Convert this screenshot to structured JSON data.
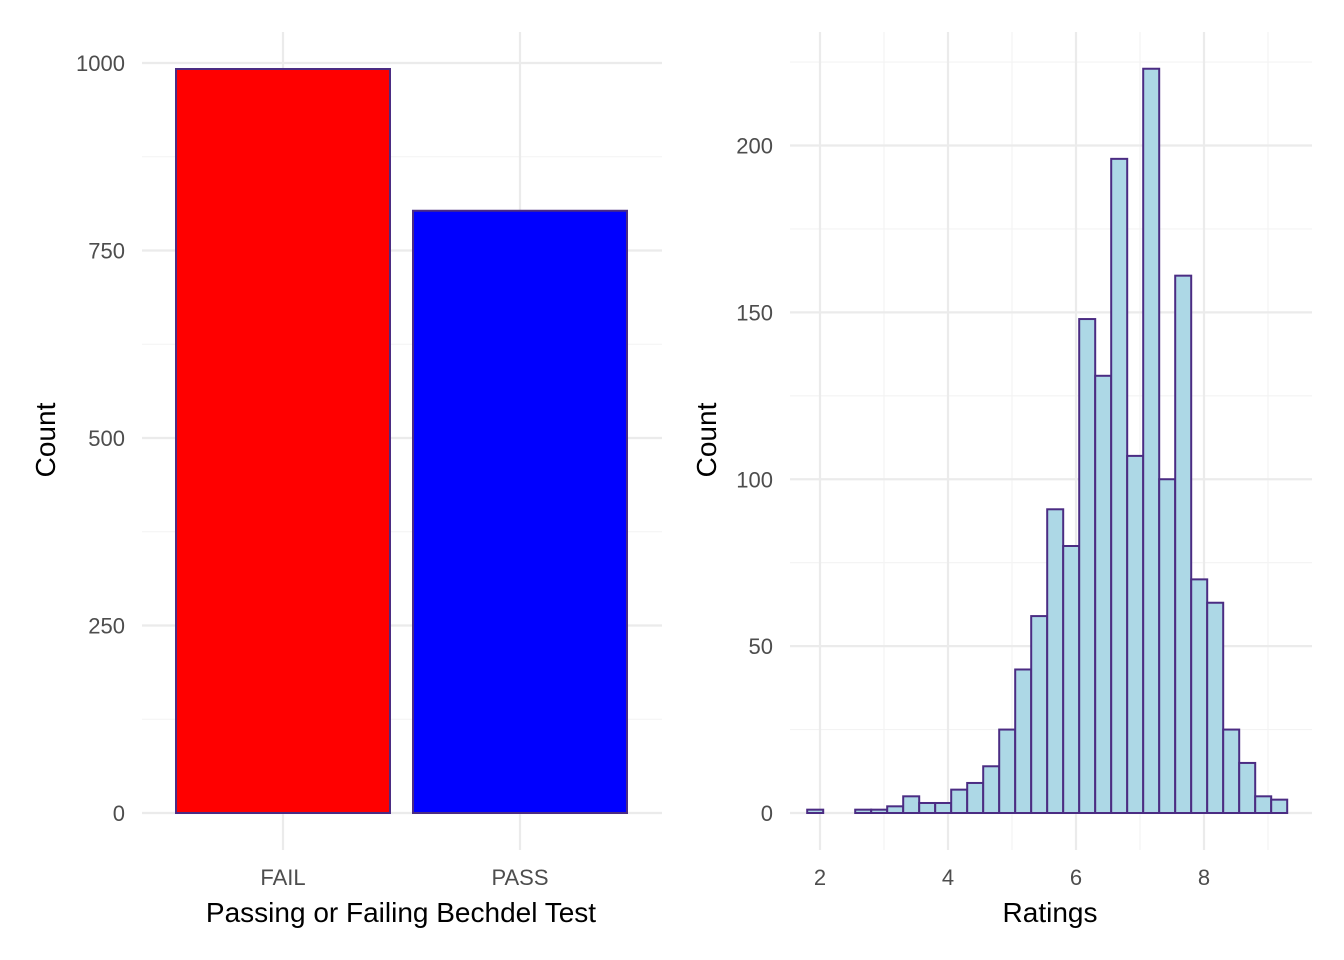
{
  "chart_data": [
    {
      "type": "bar",
      "categories": [
        "FAIL",
        "PASS"
      ],
      "values": [
        992,
        803
      ],
      "bar_colors": [
        "#ff0000",
        "#0000ff"
      ],
      "outline_color": "#4b2c83",
      "xlabel": "Passing or Failing Bechdel Test",
      "ylabel": "Count",
      "ylim": [
        0,
        1000
      ],
      "yticks": [
        0,
        250,
        500,
        750,
        1000
      ],
      "grid": true
    },
    {
      "type": "bar",
      "histogram": true,
      "bins": [
        {
          "x0": 1.8,
          "x1": 2.05,
          "count": 1
        },
        {
          "x0": 2.05,
          "x1": 2.3,
          "count": 0
        },
        {
          "x0": 2.3,
          "x1": 2.55,
          "count": 0
        },
        {
          "x0": 2.55,
          "x1": 2.8,
          "count": 1
        },
        {
          "x0": 2.8,
          "x1": 3.05,
          "count": 1
        },
        {
          "x0": 3.05,
          "x1": 3.3,
          "count": 2
        },
        {
          "x0": 3.3,
          "x1": 3.55,
          "count": 5
        },
        {
          "x0": 3.55,
          "x1": 3.8,
          "count": 3
        },
        {
          "x0": 3.8,
          "x1": 4.05,
          "count": 3
        },
        {
          "x0": 4.05,
          "x1": 4.3,
          "count": 7
        },
        {
          "x0": 4.3,
          "x1": 4.55,
          "count": 9
        },
        {
          "x0": 4.55,
          "x1": 4.8,
          "count": 14
        },
        {
          "x0": 4.8,
          "x1": 5.05,
          "count": 25
        },
        {
          "x0": 5.05,
          "x1": 5.3,
          "count": 43
        },
        {
          "x0": 5.3,
          "x1": 5.55,
          "count": 59
        },
        {
          "x0": 5.55,
          "x1": 5.8,
          "count": 91
        },
        {
          "x0": 5.8,
          "x1": 6.05,
          "count": 80
        },
        {
          "x0": 6.05,
          "x1": 6.3,
          "count": 148
        },
        {
          "x0": 6.3,
          "x1": 6.55,
          "count": 131
        },
        {
          "x0": 6.55,
          "x1": 6.8,
          "count": 196
        },
        {
          "x0": 6.8,
          "x1": 7.05,
          "count": 107
        },
        {
          "x0": 7.05,
          "x1": 7.3,
          "count": 223
        },
        {
          "x0": 7.3,
          "x1": 7.55,
          "count": 100
        },
        {
          "x0": 7.55,
          "x1": 7.8,
          "count": 161
        },
        {
          "x0": 7.8,
          "x1": 8.05,
          "count": 70
        },
        {
          "x0": 8.05,
          "x1": 8.3,
          "count": 63
        },
        {
          "x0": 8.3,
          "x1": 8.55,
          "count": 25
        },
        {
          "x0": 8.55,
          "x1": 8.8,
          "count": 15
        },
        {
          "x0": 8.8,
          "x1": 9.05,
          "count": 5
        },
        {
          "x0": 9.05,
          "x1": 9.3,
          "count": 4
        }
      ],
      "fill_color": "#add8e6",
      "outline_color": "#4b2c83",
      "xlabel": "Ratings",
      "ylabel": "Count",
      "xlim": [
        1.44,
        9.66
      ],
      "ylim": [
        0,
        234
      ],
      "xticks": [
        2,
        4,
        6,
        8
      ],
      "yticks": [
        0,
        50,
        100,
        150,
        200
      ],
      "grid": true
    }
  ]
}
